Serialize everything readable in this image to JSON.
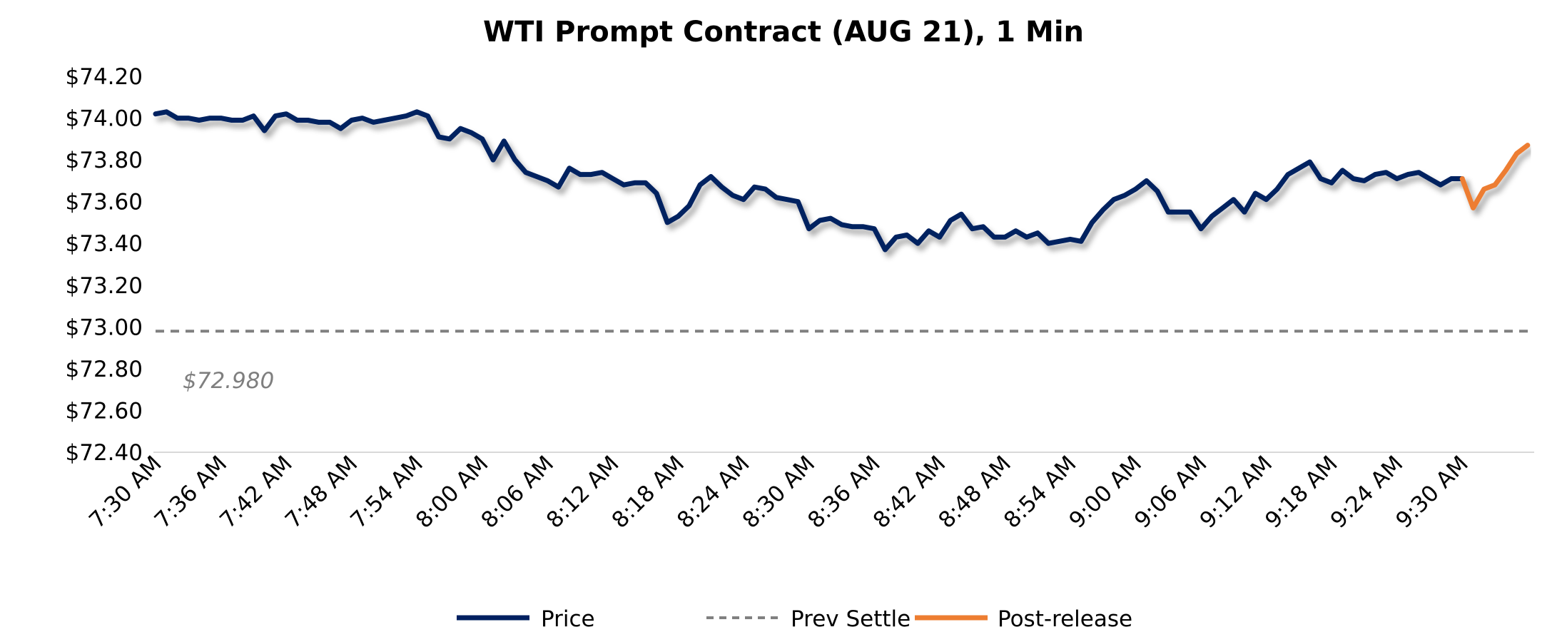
{
  "chart_data": {
    "type": "line",
    "title": "WTI Prompt Contract (AUG 21), 1 Min",
    "xlabel": "",
    "ylabel": "",
    "ylim": [
      72.4,
      74.2
    ],
    "y_ticks": [
      "$72.40",
      "$72.60",
      "$72.80",
      "$73.00",
      "$73.20",
      "$73.40",
      "$73.60",
      "$73.80",
      "$74.00",
      "$74.20"
    ],
    "y_tick_values": [
      72.4,
      72.6,
      72.8,
      73.0,
      73.2,
      73.4,
      73.6,
      73.8,
      74.0,
      74.2
    ],
    "x_start": "7:30 AM",
    "x_interval_minutes": 1,
    "x_tick_labels": [
      "7:30 AM",
      "7:36 AM",
      "7:42 AM",
      "7:48 AM",
      "7:54 AM",
      "8:00 AM",
      "8:06 AM",
      "8:12 AM",
      "8:18 AM",
      "8:24 AM",
      "8:30 AM",
      "8:36 AM",
      "8:42 AM",
      "8:48 AM",
      "8:54 AM",
      "9:00 AM",
      "9:06 AM",
      "9:12 AM",
      "9:18 AM",
      "9:24 AM",
      "9:30 AM"
    ],
    "x_tick_every_minutes": 6,
    "series": [
      {
        "name": "Price",
        "color": "#002060",
        "style": "solid",
        "start_index": 0,
        "values": [
          74.02,
          74.03,
          74.0,
          74.0,
          73.99,
          74.0,
          74.0,
          73.99,
          73.99,
          74.01,
          73.94,
          74.01,
          74.02,
          73.99,
          73.99,
          73.98,
          73.98,
          73.95,
          73.99,
          74.0,
          73.98,
          73.99,
          74.0,
          74.01,
          74.03,
          74.01,
          73.91,
          73.9,
          73.95,
          73.93,
          73.9,
          73.8,
          73.89,
          73.8,
          73.74,
          73.72,
          73.7,
          73.67,
          73.76,
          73.73,
          73.73,
          73.74,
          73.71,
          73.68,
          73.69,
          73.69,
          73.64,
          73.5,
          73.53,
          73.58,
          73.68,
          73.72,
          73.67,
          73.63,
          73.61,
          73.67,
          73.66,
          73.62,
          73.61,
          73.6,
          73.47,
          73.51,
          73.52,
          73.49,
          73.48,
          73.48,
          73.47,
          73.37,
          73.43,
          73.44,
          73.4,
          73.46,
          73.43,
          73.51,
          73.54,
          73.47,
          73.48,
          73.43,
          73.43,
          73.46,
          73.43,
          73.45,
          73.4,
          73.41,
          73.42,
          73.41,
          73.5,
          73.56,
          73.61,
          73.63,
          73.66,
          73.7,
          73.65,
          73.55,
          73.55,
          73.55,
          73.47,
          73.53,
          73.57,
          73.61,
          73.55,
          73.64,
          73.61,
          73.66,
          73.73,
          73.76,
          73.79,
          73.71,
          73.69,
          73.75,
          73.71,
          73.7,
          73.73,
          73.74,
          73.71,
          73.73,
          73.74,
          73.71,
          73.68,
          73.71,
          73.71
        ]
      },
      {
        "name": "Prev Settle",
        "color": "#808080",
        "style": "dashed",
        "constant": 72.98
      },
      {
        "name": "Post-release",
        "color": "#ed7d31",
        "style": "solid",
        "start_index": 120,
        "values": [
          73.71,
          73.57,
          73.66,
          73.68,
          73.75,
          73.83,
          73.87
        ]
      }
    ],
    "annotations": [
      {
        "text": "$72.980",
        "series": "Prev Settle"
      }
    ],
    "legend": {
      "placement": "bottom",
      "entries": [
        "Price",
        "Prev Settle",
        "Post-release"
      ]
    },
    "grid": false
  }
}
